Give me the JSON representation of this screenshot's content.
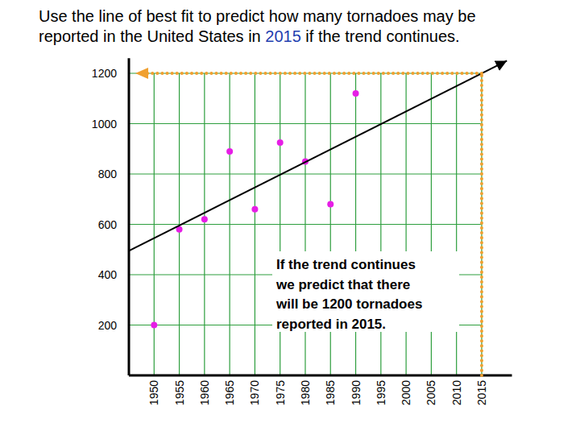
{
  "chart_data": {
    "type": "scatter",
    "title": [
      "Use the line of best fit to predict how many tornadoes may be",
      "reported in the United States in 2015 if the trend continues."
    ],
    "annotation": [
      "If the trend continues",
      "we predict that there",
      "will be 1200 tornadoes",
      "reported in 2015."
    ],
    "xlim": [
      1945,
      2021
    ],
    "xticks": [
      1950,
      1955,
      1960,
      1965,
      1970,
      1975,
      1980,
      1985,
      1990,
      1995,
      2000,
      2005,
      2010,
      2015
    ],
    "ylim": [
      0,
      1260
    ],
    "yticks": [
      200,
      400,
      600,
      800,
      1000,
      1200
    ],
    "grid": true,
    "series": [
      {
        "type": "scatter",
        "marker": "circle",
        "color": "#e61ee6",
        "x": [
          1950,
          1955,
          1960,
          1965,
          1970,
          1975,
          1980,
          1985,
          1990
        ],
        "values": [
          200,
          580,
          620,
          890,
          660,
          925,
          850,
          680,
          1120
        ]
      },
      {
        "type": "line",
        "line_style": "solid",
        "color": "#000000",
        "x": [
          1945,
          2020
        ],
        "values": [
          495,
          1250
        ]
      }
    ],
    "prediction": {
      "x": 2015,
      "value": 1200,
      "color": "#f0a030",
      "line_style": "dotted"
    }
  }
}
